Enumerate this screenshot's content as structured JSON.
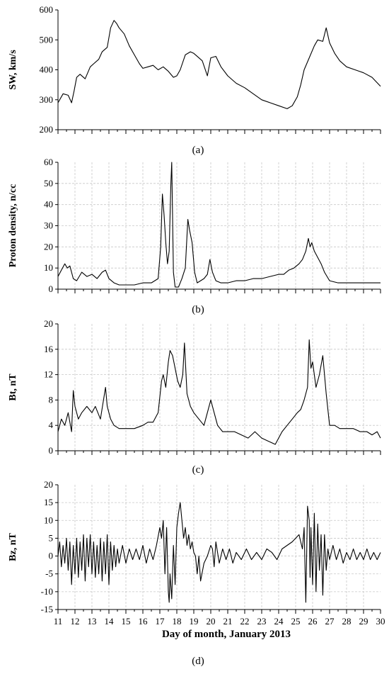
{
  "chart_data": [
    {
      "type": "line",
      "panel": "(a)",
      "ylabel": "SW, km/s",
      "ylim": [
        200,
        600
      ],
      "yticks": [
        200,
        300,
        400,
        500,
        600
      ],
      "grid": false,
      "x": [
        11.0,
        11.3,
        11.6,
        11.8,
        11.95,
        12.1,
        12.3,
        12.6,
        12.9,
        13.1,
        13.4,
        13.6,
        13.9,
        14.1,
        14.3,
        14.45,
        14.6,
        14.9,
        15.2,
        15.5,
        15.8,
        16.0,
        16.3,
        16.6,
        16.9,
        17.2,
        17.5,
        17.8,
        18.0,
        18.2,
        18.5,
        18.8,
        19.0,
        19.3,
        19.5,
        19.8,
        20.0,
        20.3,
        20.6,
        21.0,
        21.5,
        22.0,
        22.5,
        23.0,
        23.5,
        24.0,
        24.5,
        24.8,
        25.1,
        25.3,
        25.5,
        25.8,
        26.1,
        26.3,
        26.6,
        26.8,
        27.0,
        27.3,
        27.6,
        28.0,
        28.5,
        29.0,
        29.5,
        30.0
      ],
      "y": [
        290,
        320,
        315,
        290,
        330,
        375,
        385,
        370,
        410,
        420,
        435,
        460,
        475,
        540,
        565,
        555,
        540,
        520,
        480,
        450,
        420,
        405,
        410,
        415,
        400,
        410,
        395,
        375,
        380,
        400,
        450,
        460,
        455,
        440,
        430,
        380,
        440,
        445,
        410,
        380,
        355,
        340,
        320,
        300,
        290,
        280,
        270,
        280,
        310,
        350,
        400,
        440,
        480,
        500,
        495,
        540,
        490,
        455,
        430,
        410,
        400,
        390,
        375,
        345
      ]
    },
    {
      "type": "line",
      "panel": "(b)",
      "ylabel": "Proton density, n/cc",
      "ylim": [
        0,
        60
      ],
      "yticks": [
        0,
        10,
        20,
        30,
        40,
        50,
        60
      ],
      "grid": true,
      "x": [
        11.0,
        11.2,
        11.4,
        11.55,
        11.7,
        11.9,
        12.1,
        12.4,
        12.7,
        13.0,
        13.3,
        13.6,
        13.8,
        14.0,
        14.3,
        14.6,
        15.0,
        15.5,
        16.0,
        16.5,
        16.9,
        17.05,
        17.15,
        17.25,
        17.35,
        17.45,
        17.55,
        17.65,
        17.7,
        17.8,
        17.9,
        18.1,
        18.3,
        18.5,
        18.65,
        18.75,
        18.9,
        19.05,
        19.2,
        19.4,
        19.6,
        19.8,
        19.95,
        20.1,
        20.3,
        20.6,
        21.0,
        21.5,
        22.0,
        22.5,
        23.0,
        23.5,
        24.0,
        24.3,
        24.6,
        24.9,
        25.2,
        25.4,
        25.6,
        25.75,
        25.85,
        25.95,
        26.1,
        26.3,
        26.5,
        26.7,
        27.0,
        27.5,
        28.0,
        28.5,
        29.0,
        29.5,
        30.0
      ],
      "y": [
        6,
        9,
        12,
        10,
        11,
        5,
        4,
        8,
        6,
        7,
        5,
        8,
        9,
        5,
        3,
        2,
        2,
        2,
        3,
        3,
        5,
        20,
        45,
        35,
        22,
        12,
        18,
        50,
        60,
        8,
        1,
        1,
        5,
        10,
        33,
        28,
        22,
        8,
        3,
        4,
        5,
        7,
        14,
        8,
        4,
        3,
        3,
        4,
        4,
        5,
        5,
        6,
        7,
        7,
        9,
        10,
        12,
        14,
        18,
        24,
        20,
        22,
        18,
        15,
        12,
        8,
        4,
        3,
        3,
        3,
        3,
        3,
        3
      ]
    },
    {
      "type": "line",
      "panel": "(c)",
      "ylabel": "Bt, nT",
      "ylim": [
        0,
        20
      ],
      "yticks": [
        0,
        4,
        8,
        12,
        16,
        20
      ],
      "grid": true,
      "x": [
        11.0,
        11.2,
        11.4,
        11.6,
        11.8,
        11.9,
        12.0,
        12.2,
        12.4,
        12.7,
        13.0,
        13.2,
        13.5,
        13.8,
        13.9,
        14.1,
        14.3,
        14.6,
        15.0,
        15.5,
        16.0,
        16.3,
        16.6,
        16.9,
        17.1,
        17.2,
        17.35,
        17.5,
        17.6,
        17.75,
        17.9,
        18.05,
        18.2,
        18.35,
        18.45,
        18.6,
        18.8,
        19.0,
        19.3,
        19.6,
        19.8,
        20.0,
        20.2,
        20.4,
        20.7,
        21.0,
        21.4,
        21.8,
        22.2,
        22.6,
        23.0,
        23.4,
        23.8,
        24.2,
        24.5,
        24.8,
        25.1,
        25.3,
        25.5,
        25.7,
        25.8,
        25.9,
        26.0,
        26.2,
        26.4,
        26.6,
        26.8,
        27.0,
        27.3,
        27.6,
        28.0,
        28.4,
        28.8,
        29.2,
        29.5,
        29.8,
        30.0
      ],
      "y": [
        3,
        5,
        4,
        6,
        3,
        9.5,
        7,
        5,
        6,
        7,
        6,
        7,
        5,
        10,
        7,
        5,
        4,
        3.5,
        3.5,
        3.5,
        4,
        4.5,
        4.5,
        6,
        11,
        12,
        10,
        14,
        15.8,
        15,
        13,
        11,
        10,
        12,
        17,
        9,
        7,
        6,
        5,
        4,
        6,
        8,
        6,
        4,
        3,
        3,
        3,
        2.5,
        2,
        3,
        2,
        1.5,
        1,
        3,
        4,
        5,
        6,
        6.5,
        8,
        10,
        17.5,
        13,
        14,
        10,
        12,
        15,
        9,
        4,
        4,
        3.5,
        3.5,
        3.5,
        3,
        3,
        2.5,
        3,
        2
      ]
    },
    {
      "type": "line",
      "panel": "(d)",
      "ylabel": "Bz, nT",
      "ylim": [
        -15,
        20
      ],
      "yticks": [
        -15,
        -10,
        -5,
        0,
        5,
        10,
        15,
        20
      ],
      "grid": true,
      "x": [
        11.0,
        11.1,
        11.2,
        11.3,
        11.4,
        11.5,
        11.6,
        11.7,
        11.8,
        11.9,
        12.0,
        12.1,
        12.2,
        12.3,
        12.4,
        12.5,
        12.6,
        12.7,
        12.8,
        12.9,
        13.0,
        13.1,
        13.2,
        13.3,
        13.4,
        13.5,
        13.6,
        13.7,
        13.8,
        13.9,
        14.0,
        14.1,
        14.2,
        14.3,
        14.4,
        14.5,
        14.6,
        14.8,
        15.0,
        15.2,
        15.4,
        15.6,
        15.8,
        16.0,
        16.2,
        16.4,
        16.6,
        16.8,
        17.0,
        17.1,
        17.2,
        17.3,
        17.4,
        17.5,
        17.55,
        17.6,
        17.7,
        17.8,
        17.9,
        18.0,
        18.1,
        18.2,
        18.3,
        18.4,
        18.5,
        18.6,
        18.7,
        18.8,
        18.9,
        19.0,
        19.1,
        19.2,
        19.3,
        19.4,
        19.6,
        19.8,
        20.0,
        20.1,
        20.2,
        20.3,
        20.5,
        20.7,
        20.9,
        21.1,
        21.3,
        21.5,
        21.8,
        22.1,
        22.4,
        22.7,
        23.0,
        23.3,
        23.6,
        23.9,
        24.2,
        24.5,
        24.8,
        25.0,
        25.2,
        25.4,
        25.5,
        25.6,
        25.7,
        25.8,
        25.85,
        25.9,
        26.0,
        26.1,
        26.2,
        26.3,
        26.4,
        26.5,
        26.6,
        26.7,
        26.8,
        26.9,
        27.0,
        27.2,
        27.4,
        27.6,
        27.8,
        28.0,
        28.2,
        28.4,
        28.6,
        28.8,
        29.0,
        29.2,
        29.4,
        29.6,
        29.8,
        30.0
      ],
      "y": [
        0,
        4,
        -3,
        3,
        -2,
        5,
        -4,
        4,
        -8,
        3,
        -5,
        5,
        -6,
        4,
        -4,
        6,
        -7,
        5,
        -3,
        6,
        -5,
        4,
        -6,
        3,
        -5,
        5,
        -7,
        4,
        -5,
        6,
        -8,
        4,
        -4,
        3,
        -3,
        2,
        -2,
        3,
        -2,
        2,
        -1,
        2,
        -1,
        3,
        -2,
        2,
        -1,
        3,
        8,
        5,
        10,
        -5,
        8,
        -10,
        -13,
        -5,
        -12,
        3,
        -8,
        8,
        12,
        15,
        10,
        5,
        8,
        3,
        6,
        2,
        4,
        1,
        0,
        -5,
        0,
        -7,
        -2,
        0,
        3,
        2,
        -3,
        4,
        -2,
        2,
        -1,
        2,
        -2,
        1,
        -1,
        2,
        -1,
        1,
        -1,
        2,
        1,
        -1,
        2,
        3,
        4,
        5,
        6,
        2,
        8,
        -13,
        14,
        10,
        -6,
        8,
        -8,
        12,
        -10,
        9,
        -4,
        6,
        -11,
        6,
        -4,
        2,
        -1,
        3,
        -1,
        2,
        -2,
        1,
        -1,
        2,
        -1,
        1,
        -1,
        2,
        -1,
        1,
        -1,
        1
      ]
    }
  ],
  "x_axis": {
    "label": "Day of month, January 2013",
    "ticks": [
      11,
      12,
      13,
      14,
      15,
      16,
      17,
      18,
      19,
      20,
      21,
      22,
      23,
      24,
      25,
      26,
      27,
      28,
      29,
      30
    ],
    "range": [
      11,
      30
    ]
  },
  "captions": [
    "(a)",
    "(b)",
    "(c)",
    "(d)"
  ]
}
